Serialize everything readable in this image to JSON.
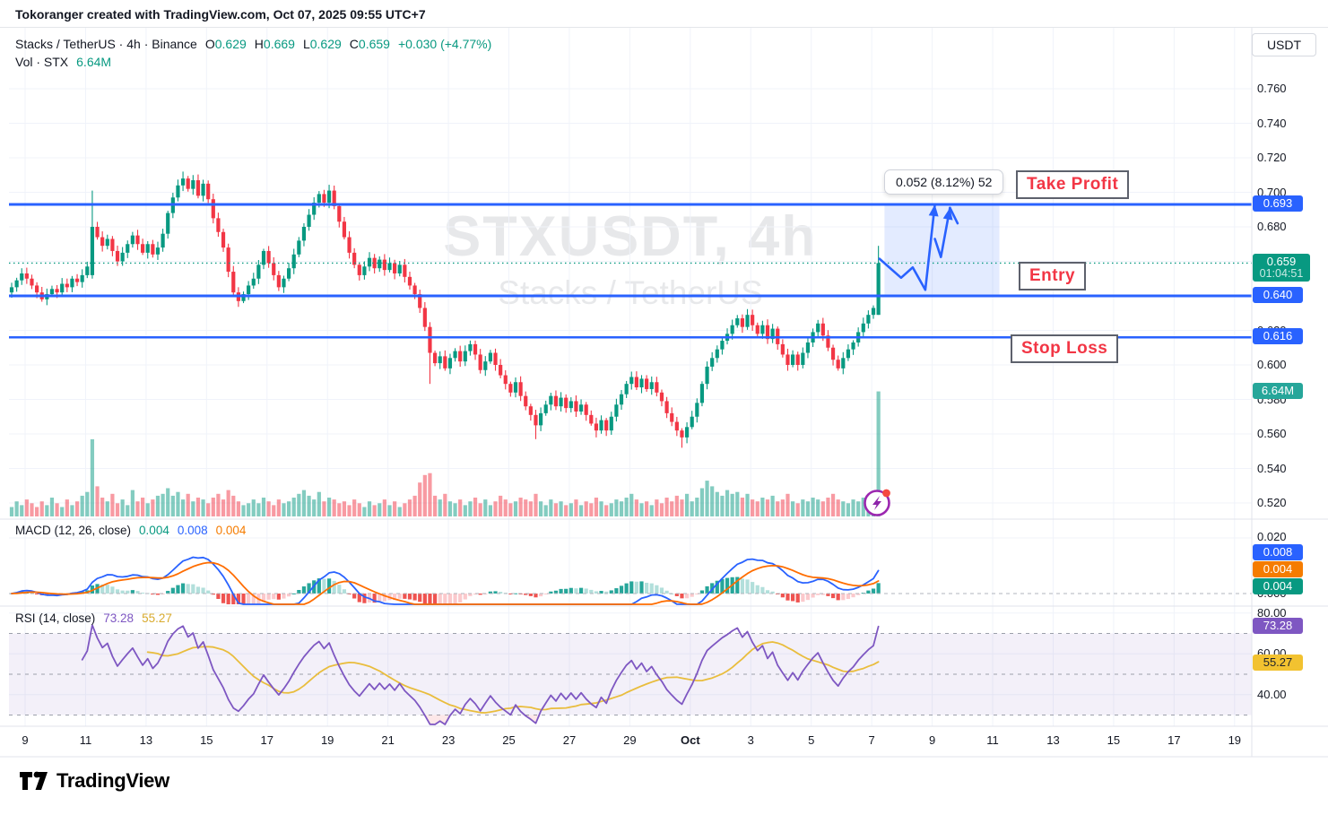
{
  "title_bar": "Tokoranger created with TradingView.com, Oct 07, 2025 09:55 UTC+7",
  "header": {
    "symbol_title": "Stacks / TetherUS · 4h · Binance",
    "o_label": "O",
    "o": "0.629",
    "h_label": "H",
    "h": "0.669",
    "l_label": "L",
    "l": "0.629",
    "c_label": "C",
    "c": "0.659",
    "change": "+0.030 (+4.77%)",
    "vol_label": "Vol · STX",
    "vol_value": "6.64M",
    "currency_button": "USDT"
  },
  "watermark": {
    "line1": "STXUSDT, 4h",
    "line2": "Stacks / TetherUS"
  },
  "drawings": {
    "take_profit": "Take Profit",
    "entry": "Entry",
    "stop_loss": "Stop Loss",
    "measure_label": "0.052 (8.12%) 52"
  },
  "indicators": {
    "macd": {
      "label": "MACD (12, 26, close)",
      "hist": "0.004",
      "macd": "0.008",
      "signal": "0.004"
    },
    "rsi": {
      "label": "RSI (14, close)",
      "value": "73.28",
      "ma": "55.27"
    }
  },
  "footer": {
    "logo_text": "TradingView"
  },
  "colors": {
    "up": "#089981",
    "down": "#f23645",
    "vol_up": "rgba(8,153,129,0.5)",
    "vol_down": "rgba(242,54,69,0.5)",
    "blue": "#2962ff",
    "zone_fill": "rgba(41,98,255,0.13)",
    "current_dotted": "#089981",
    "macd_line": "#2962ff",
    "signal_line": "#ff6d00",
    "hist_up": "#26a69a",
    "hist_up_fade": "#b2dfdb",
    "hist_down": "#ef5350",
    "hist_down_fade": "#fbc9cc",
    "rsi_line": "#7e57c2",
    "rsi_ma_line": "#e9bd3d",
    "band_fill": "rgba(126,87,194,0.09)",
    "oversold_fill": "rgba(242,54,69,0.12)",
    "grid": "#f0f3fa",
    "separator": "#e0e3eb",
    "dashed": "#9ca0ab"
  },
  "chart_data": {
    "type": "candlestick",
    "symbol": "STXUSDT",
    "interval": "4h",
    "exchange": "Binance",
    "legend_ohlc": {
      "open": 0.629,
      "high": 0.669,
      "low": 0.629,
      "close": 0.659,
      "change": 0.03,
      "change_pct": 4.77
    },
    "levels": {
      "take_profit": 0.693,
      "entry": 0.64,
      "stop_loss": 0.616,
      "current": 0.659,
      "countdown": "01:04:51"
    },
    "price_axis": {
      "ticks": [
        "0.760",
        "0.740",
        "0.720",
        "0.700",
        "0.680",
        "0.660",
        "0.640",
        "0.620",
        "0.600",
        "0.580",
        "0.560",
        "0.540",
        "0.520"
      ],
      "badges": [
        {
          "text": "0.693",
          "value": 0.693,
          "bg": "#2962ff"
        },
        {
          "text": "0.659",
          "sub": "01:04:51",
          "value": 0.659,
          "bg": "#089981"
        },
        {
          "text": "0.640",
          "value": 0.64,
          "bg": "#2962ff"
        },
        {
          "text": "0.616",
          "value": 0.616,
          "bg": "#2962ff"
        },
        {
          "text": "6.64M",
          "volume_m": 6.64,
          "bg": "#26a69a"
        }
      ]
    },
    "time_axis": {
      "labels": [
        "9",
        "11",
        "13",
        "15",
        "17",
        "19",
        "21",
        "23",
        "25",
        "27",
        "29",
        "Oct",
        "3",
        "5",
        "7",
        "9",
        "11",
        "13",
        "15",
        "17",
        "19"
      ],
      "bold_label": "Oct"
    },
    "candles": {
      "closes": [
        0.645,
        0.649,
        0.653,
        0.65,
        0.646,
        0.642,
        0.638,
        0.641,
        0.644,
        0.642,
        0.647,
        0.645,
        0.65,
        0.648,
        0.652,
        0.657,
        0.68,
        0.674,
        0.669,
        0.673,
        0.666,
        0.66,
        0.665,
        0.67,
        0.675,
        0.67,
        0.665,
        0.67,
        0.664,
        0.668,
        0.676,
        0.688,
        0.697,
        0.704,
        0.708,
        0.702,
        0.707,
        0.698,
        0.705,
        0.696,
        0.685,
        0.677,
        0.668,
        0.654,
        0.642,
        0.637,
        0.641,
        0.646,
        0.65,
        0.658,
        0.666,
        0.659,
        0.652,
        0.645,
        0.65,
        0.656,
        0.664,
        0.672,
        0.68,
        0.687,
        0.694,
        0.699,
        0.694,
        0.701,
        0.692,
        0.683,
        0.674,
        0.665,
        0.658,
        0.652,
        0.657,
        0.662,
        0.656,
        0.661,
        0.655,
        0.659,
        0.653,
        0.658,
        0.651,
        0.646,
        0.641,
        0.633,
        0.622,
        0.607,
        0.601,
        0.605,
        0.598,
        0.604,
        0.608,
        0.602,
        0.608,
        0.612,
        0.606,
        0.597,
        0.602,
        0.607,
        0.6,
        0.594,
        0.589,
        0.584,
        0.59,
        0.582,
        0.576,
        0.571,
        0.565,
        0.572,
        0.577,
        0.582,
        0.576,
        0.581,
        0.575,
        0.579,
        0.573,
        0.577,
        0.571,
        0.566,
        0.562,
        0.568,
        0.562,
        0.57,
        0.577,
        0.583,
        0.589,
        0.593,
        0.587,
        0.592,
        0.586,
        0.59,
        0.584,
        0.579,
        0.572,
        0.567,
        0.562,
        0.558,
        0.564,
        0.57,
        0.578,
        0.589,
        0.599,
        0.604,
        0.609,
        0.614,
        0.618,
        0.623,
        0.627,
        0.622,
        0.629,
        0.623,
        0.618,
        0.623,
        0.615,
        0.621,
        0.612,
        0.606,
        0.6,
        0.606,
        0.6,
        0.607,
        0.613,
        0.619,
        0.624,
        0.617,
        0.61,
        0.603,
        0.598,
        0.604,
        0.609,
        0.613,
        0.619,
        0.624,
        0.629,
        0.633,
        0.659
      ],
      "volumes_m": [
        0.5,
        0.8,
        0.6,
        0.9,
        0.7,
        0.5,
        0.8,
        0.6,
        1.0,
        0.7,
        0.5,
        0.9,
        0.6,
        0.8,
        1.1,
        1.3,
        4.1,
        1.6,
        1.0,
        0.8,
        1.2,
        0.7,
        0.9,
        0.6,
        1.4,
        0.8,
        1.0,
        0.7,
        0.9,
        1.1,
        1.2,
        1.5,
        1.1,
        1.3,
        0.9,
        1.2,
        0.8,
        1.0,
        0.9,
        0.7,
        1.0,
        1.2,
        0.9,
        1.4,
        1.1,
        0.8,
        0.6,
        0.7,
        0.9,
        0.7,
        1.0,
        0.8,
        0.6,
        0.9,
        0.7,
        0.8,
        1.0,
        1.2,
        1.4,
        1.1,
        0.9,
        1.3,
        0.8,
        1.0,
        0.9,
        0.7,
        0.8,
        0.6,
        0.9,
        0.7,
        0.5,
        0.8,
        0.6,
        0.7,
        0.9,
        0.6,
        0.8,
        0.5,
        0.7,
        0.9,
        1.1,
        1.8,
        2.2,
        2.3,
        1.1,
        0.9,
        1.2,
        0.8,
        0.7,
        0.9,
        0.6,
        0.8,
        1.0,
        0.7,
        0.9,
        0.6,
        0.8,
        1.1,
        0.9,
        0.7,
        0.8,
        1.0,
        0.9,
        0.8,
        1.2,
        0.8,
        0.6,
        0.9,
        0.7,
        0.8,
        0.6,
        0.7,
        0.9,
        0.6,
        0.8,
        0.7,
        1.0,
        0.8,
        0.6,
        0.7,
        0.9,
        0.8,
        1.0,
        1.2,
        0.9,
        0.7,
        0.8,
        0.6,
        0.9,
        0.7,
        1.0,
        0.8,
        1.1,
        0.9,
        1.2,
        0.8,
        1.0,
        1.5,
        1.9,
        1.6,
        1.3,
        1.1,
        1.4,
        1.2,
        1.3,
        1.0,
        1.2,
        0.9,
        0.8,
        1.0,
        0.9,
        1.1,
        0.8,
        0.9,
        1.2,
        0.8,
        0.7,
        0.9,
        0.8,
        1.0,
        0.9,
        0.8,
        1.0,
        1.2,
        0.9,
        0.8,
        0.7,
        0.9,
        0.8,
        1.0,
        1.1,
        1.3,
        6.64
      ],
      "overrides": {
        "16": {
          "o": 0.652,
          "h": 0.701,
          "l": 0.65
        },
        "34": {
          "h": 0.712
        },
        "83": {
          "l": 0.589
        },
        "104": {
          "l": 0.557
        },
        "116": {
          "l": 0.558
        },
        "133": {
          "l": 0.552
        },
        "172": {
          "o": 0.629,
          "h": 0.669,
          "l": 0.629
        }
      }
    },
    "projection": {
      "paths": [
        {
          "pts": [
            [
              172.2,
              0.6615
            ],
            [
              176.5,
              0.6505
            ],
            [
              178.8,
              0.6565
            ],
            [
              181.3,
              0.6435
            ],
            [
              183.2,
              0.693
            ]
          ],
          "arrow": true
        },
        {
          "pts": [
            [
              183.2,
              0.673
            ],
            [
              184.4,
              0.6625
            ],
            [
              186.2,
              0.691
            ]
          ],
          "arrow": true
        },
        {
          "pts": [
            [
              186.2,
              0.691
            ],
            [
              187.7,
              0.682
            ]
          ],
          "arrow": false
        }
      ],
      "zone": {
        "i1": 173.2,
        "i2": 196.0,
        "p_top": 0.693,
        "p_bottom": 0.6405
      }
    },
    "macd_settings": {
      "fast": 12,
      "slow": 26,
      "signal": 9
    },
    "macd_axis": {
      "ticks": [
        [
          "0.020",
          0.02
        ],
        [
          "0.000",
          0.0
        ]
      ],
      "badges": [
        {
          "text": "0.008",
          "bg": "#2962ff"
        },
        {
          "text": "0.004",
          "bg": "#f57c00"
        },
        {
          "text": "0.004",
          "bg": "#089981"
        }
      ]
    },
    "rsi_settings": {
      "length": 14,
      "ma_length": 14
    },
    "rsi_axis": {
      "ticks": [
        [
          "80.00",
          80
        ],
        [
          "60.00",
          60
        ],
        [
          "40.00",
          40
        ]
      ],
      "bands": [
        70,
        30
      ],
      "mid": 50,
      "badges": [
        {
          "text": "73.28",
          "value": 73.28,
          "bg": "#7e57c2"
        },
        {
          "text": "55.27",
          "value": 55.27,
          "bg": "#f2c230",
          "dark": true
        }
      ]
    }
  }
}
